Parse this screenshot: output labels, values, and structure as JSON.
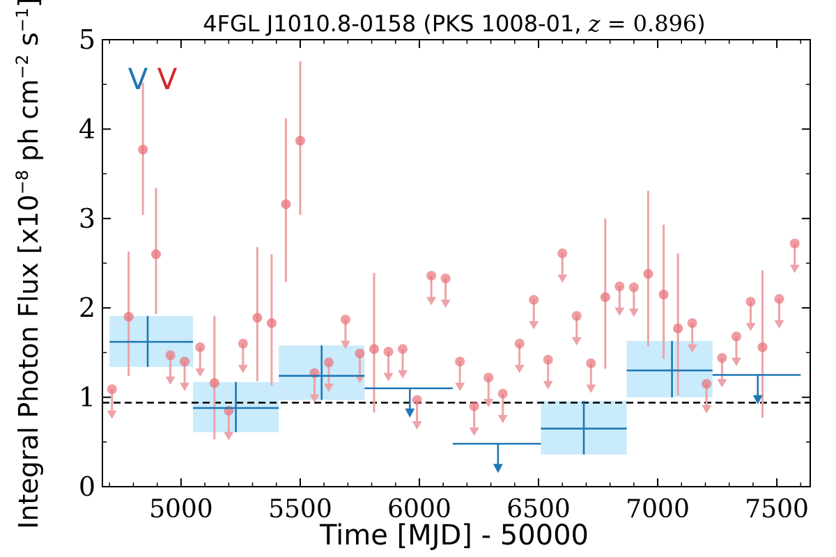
{
  "chart_data": {
    "type": "scatter",
    "title_main": "4FGL J1010.8-0158 (PKS 1008-01, ",
    "title_var": "z",
    "title_eq": " = 0.896",
    "title_close": ")",
    "xlabel": "Time [MJD] - 50000",
    "ylabel_main": "Integral Photon Flux [x10",
    "ylabel_exp1": "−8",
    "ylabel_mid": " ph cm",
    "ylabel_exp2": "−2",
    "ylabel_mid2": " s",
    "ylabel_exp3": "−1",
    "ylabel_close": "]",
    "xlim": [
      4670,
      7640
    ],
    "ylim": [
      0,
      5
    ],
    "xticks": [
      "5000",
      "5500",
      "6000",
      "6500",
      "7000",
      "7500"
    ],
    "yticks": [
      "0",
      "1",
      "2",
      "3",
      "4",
      "5"
    ],
    "xtick_values": [
      5000,
      5500,
      6000,
      6500,
      7000,
      7500
    ],
    "ytick_values": [
      0,
      1,
      2,
      3,
      4,
      5
    ],
    "baseline": 0.94,
    "markers": [
      "V",
      "V"
    ],
    "colors": {
      "blue": "#1f77b4",
      "red_marker": "#e8737a",
      "red_errbar": "#eda3a7",
      "band_fill": "#c9ebfb",
      "v_red": "#d62728",
      "baseline": "#000000"
    },
    "series": [
      {
        "style": "long-bin",
        "bins": [
          {
            "x0": 4700,
            "x1": 5050,
            "x": 4860,
            "y": 1.62,
            "ylo": 1.34,
            "yhi": 1.91
          },
          {
            "x0": 5050,
            "x1": 5410,
            "x": 5230,
            "y": 0.88,
            "ylo": 0.61,
            "yhi": 1.17
          },
          {
            "x0": 5410,
            "x1": 5770,
            "x": 5590,
            "y": 1.24,
            "ylo": 0.97,
            "yhi": 1.58
          },
          {
            "x0": 6510,
            "x1": 6870,
            "x": 6690,
            "y": 0.65,
            "ylo": 0.36,
            "yhi": 0.96
          },
          {
            "x0": 6870,
            "x1": 7230,
            "x": 7060,
            "y": 1.3,
            "ylo": 1.0,
            "yhi": 1.63
          }
        ],
        "upper_limits": [
          {
            "x0": 5770,
            "x1": 6140,
            "x": 5960,
            "y": 1.1
          },
          {
            "x0": 6140,
            "x1": 6510,
            "x": 6330,
            "y": 0.48
          },
          {
            "x0": 7230,
            "x1": 7600,
            "x": 7420,
            "y": 1.25
          }
        ]
      },
      {
        "style": "short-bin",
        "detections": [
          {
            "x": 4780,
            "y": 1.9,
            "ylo": 1.24,
            "yhi": 2.63
          },
          {
            "x": 4840,
            "y": 3.77,
            "ylo": 3.04,
            "yhi": 4.52
          },
          {
            "x": 4895,
            "y": 2.6,
            "ylo": 1.93,
            "yhi": 3.34
          },
          {
            "x": 5140,
            "y": 1.16,
            "ylo": 0.53,
            "yhi": 1.91
          },
          {
            "x": 5320,
            "y": 1.89,
            "ylo": 1.18,
            "yhi": 2.68
          },
          {
            "x": 5380,
            "y": 1.83,
            "ylo": 1.13,
            "yhi": 2.6
          },
          {
            "x": 5440,
            "y": 3.16,
            "ylo": 2.29,
            "yhi": 4.12
          },
          {
            "x": 5500,
            "y": 3.87,
            "ylo": 3.04,
            "yhi": 4.76
          },
          {
            "x": 5810,
            "y": 1.54,
            "ylo": 0.83,
            "yhi": 2.39
          },
          {
            "x": 6780,
            "y": 2.12,
            "ylo": 1.32,
            "yhi": 3.0
          },
          {
            "x": 6960,
            "y": 2.38,
            "ylo": 1.57,
            "yhi": 3.31
          },
          {
            "x": 7025,
            "y": 2.15,
            "ylo": 1.43,
            "yhi": 2.93
          },
          {
            "x": 7085,
            "y": 1.77,
            "ylo": 1.02,
            "yhi": 2.61
          },
          {
            "x": 7440,
            "y": 1.56,
            "ylo": 0.77,
            "yhi": 2.42
          }
        ],
        "upper_limits": [
          {
            "x": 4710,
            "y": 1.09
          },
          {
            "x": 4955,
            "y": 1.47
          },
          {
            "x": 5015,
            "y": 1.4
          },
          {
            "x": 5080,
            "y": 1.56
          },
          {
            "x": 5200,
            "y": 0.85
          },
          {
            "x": 5260,
            "y": 1.6
          },
          {
            "x": 5560,
            "y": 1.27
          },
          {
            "x": 5620,
            "y": 1.39
          },
          {
            "x": 5690,
            "y": 1.87
          },
          {
            "x": 5750,
            "y": 1.49
          },
          {
            "x": 5870,
            "y": 1.51
          },
          {
            "x": 5930,
            "y": 1.54
          },
          {
            "x": 5990,
            "y": 0.97
          },
          {
            "x": 6050,
            "y": 2.36
          },
          {
            "x": 6110,
            "y": 2.33
          },
          {
            "x": 6170,
            "y": 1.4
          },
          {
            "x": 6230,
            "y": 0.9
          },
          {
            "x": 6290,
            "y": 1.22
          },
          {
            "x": 6350,
            "y": 1.04
          },
          {
            "x": 6420,
            "y": 1.6
          },
          {
            "x": 6480,
            "y": 2.09
          },
          {
            "x": 6540,
            "y": 1.42
          },
          {
            "x": 6600,
            "y": 2.61
          },
          {
            "x": 6660,
            "y": 1.91
          },
          {
            "x": 6720,
            "y": 1.38
          },
          {
            "x": 6840,
            "y": 2.24
          },
          {
            "x": 6900,
            "y": 2.23
          },
          {
            "x": 7145,
            "y": 1.83
          },
          {
            "x": 7205,
            "y": 1.15
          },
          {
            "x": 7270,
            "y": 1.44
          },
          {
            "x": 7330,
            "y": 1.68
          },
          {
            "x": 7390,
            "y": 2.07
          },
          {
            "x": 7510,
            "y": 2.1
          },
          {
            "x": 7575,
            "y": 2.72
          }
        ]
      }
    ]
  }
}
